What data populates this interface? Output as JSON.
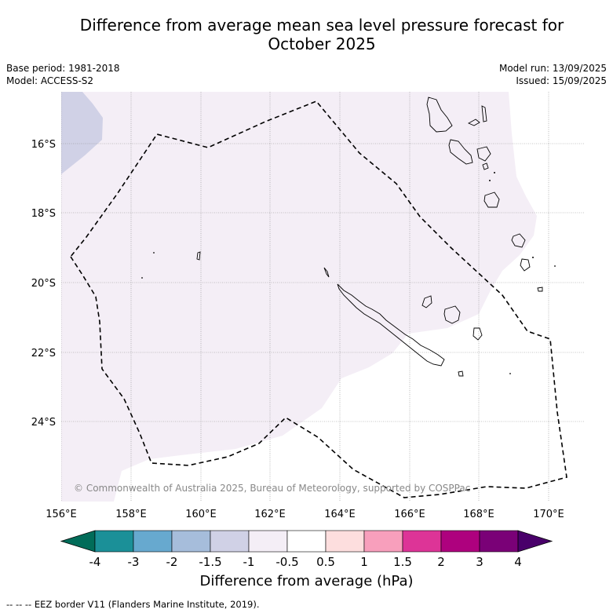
{
  "title_line1": "Difference from average mean sea level pressure forecast for",
  "title_line2": "October 2025",
  "meta": {
    "base_period": "Base period: 1981-2018",
    "model": "Model: ACCESS-S2",
    "model_run": "Model run: 13/09/2025",
    "issued": "Issued: 15/09/2025"
  },
  "map": {
    "lat_labels": [
      "16°S",
      "18°S",
      "20°S",
      "22°S",
      "24°S"
    ],
    "lon_labels": [
      "156°E",
      "158°E",
      "160°E",
      "162°E",
      "164°E",
      "166°E",
      "168°E",
      "170°E"
    ],
    "copyright": "© Commonwealth of Australia 2025, Bureau of Meteorology, supported by COSPPac",
    "fill_colors": {
      "band_-1.5_-1": "#d0d1e6",
      "band_-1_-0.5": "#f4eef6",
      "band_-0.5_0.5": "#ffffff"
    }
  },
  "colorbar": {
    "ticks": [
      "-4",
      "-3",
      "-2",
      "-1.5",
      "-1",
      "-0.5",
      "0.5",
      "1",
      "1.5",
      "2",
      "3",
      "4"
    ],
    "colors": [
      "#1b9098",
      "#67a9cf",
      "#a6bddb",
      "#d0d1e6",
      "#f4eef6",
      "#ffffff",
      "#fddede",
      "#f89fbc",
      "#dd3497",
      "#ae017e",
      "#7a0177"
    ],
    "under_color": "#016c59",
    "over_color": "#49006a",
    "label": "Difference from average (hPa)"
  },
  "footnote": "--  --  -- EEZ border V11 (Flanders Marine Institute, 2019)."
}
